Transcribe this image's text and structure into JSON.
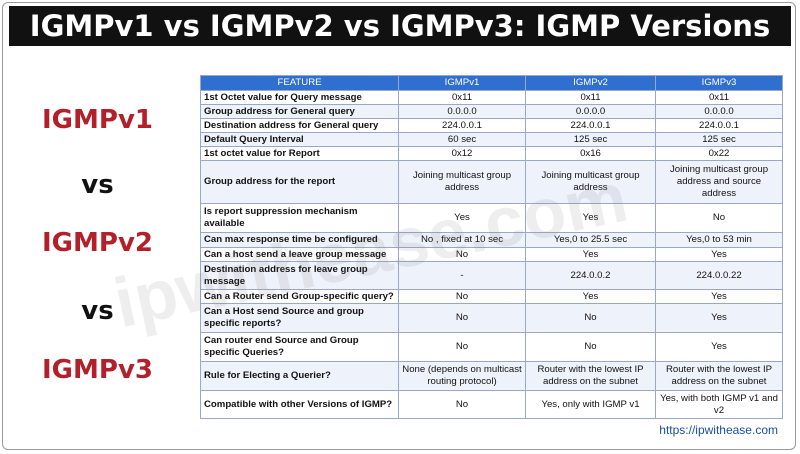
{
  "header": {
    "title": "IGMPv1 vs IGMPv2 vs IGMPv3: IGMP Versions"
  },
  "sidebar": [
    "IGMPv1",
    "vs",
    "IGMPv2",
    "vs",
    "IGMPv3"
  ],
  "table": {
    "columns": [
      "FEATURE",
      "IGMPv1",
      "IGMPv2",
      "IGMPv3"
    ],
    "rows": [
      [
        "1st Octet value for Query message",
        "0x11",
        "0x11",
        "0x11"
      ],
      [
        "Group address for General query",
        "0.0.0.0",
        "0.0.0.0",
        "0.0.0.0"
      ],
      [
        "Destination address for General query",
        "224.0.0.1",
        "224.0.0.1",
        "224.0.0.1"
      ],
      [
        "Default Query Interval",
        "60 sec",
        "125 sec",
        "125 sec"
      ],
      [
        "1st octet value for Report",
        "0x12",
        "0x16",
        "0x22"
      ],
      [
        "Group address for the report",
        "Joining multicast group address",
        "Joining multicast group address",
        "Joining multicast group address and source address"
      ],
      [
        "Is report suppression mechanism available",
        "Yes",
        "Yes",
        "No"
      ],
      [
        "Can max response time be configured",
        "No , fixed at 10 sec",
        "Yes,0 to 25.5 sec",
        "Yes,0 to 53 min"
      ],
      [
        "Can a host send a leave group message",
        "No",
        "Yes",
        "Yes"
      ],
      [
        "Destination address for leave group message",
        "-",
        "224.0.0.2",
        "224.0.0.22"
      ],
      [
        "Can a Router send Group-specific query?",
        "No",
        "Yes",
        "Yes"
      ],
      [
        "Can a Host send Source and group specific reports?",
        "No",
        "No",
        "Yes"
      ],
      [
        "Can router end Source and Group specific Queries?",
        "No",
        "No",
        "Yes"
      ],
      [
        "Rule for Electing a Querier?",
        "None (depends on multicast routing protocol)",
        "Router with the lowest IP address on the subnet",
        "Router with the lowest IP address on the subnet"
      ],
      [
        "Compatible with other Versions of IGMP?",
        "No",
        "Yes, only with IGMP v1",
        "Yes, with both IGMP v1 and v2"
      ]
    ]
  },
  "watermark": "ipwithease.com",
  "footer": {
    "url": "https://ipwithease.com"
  }
}
